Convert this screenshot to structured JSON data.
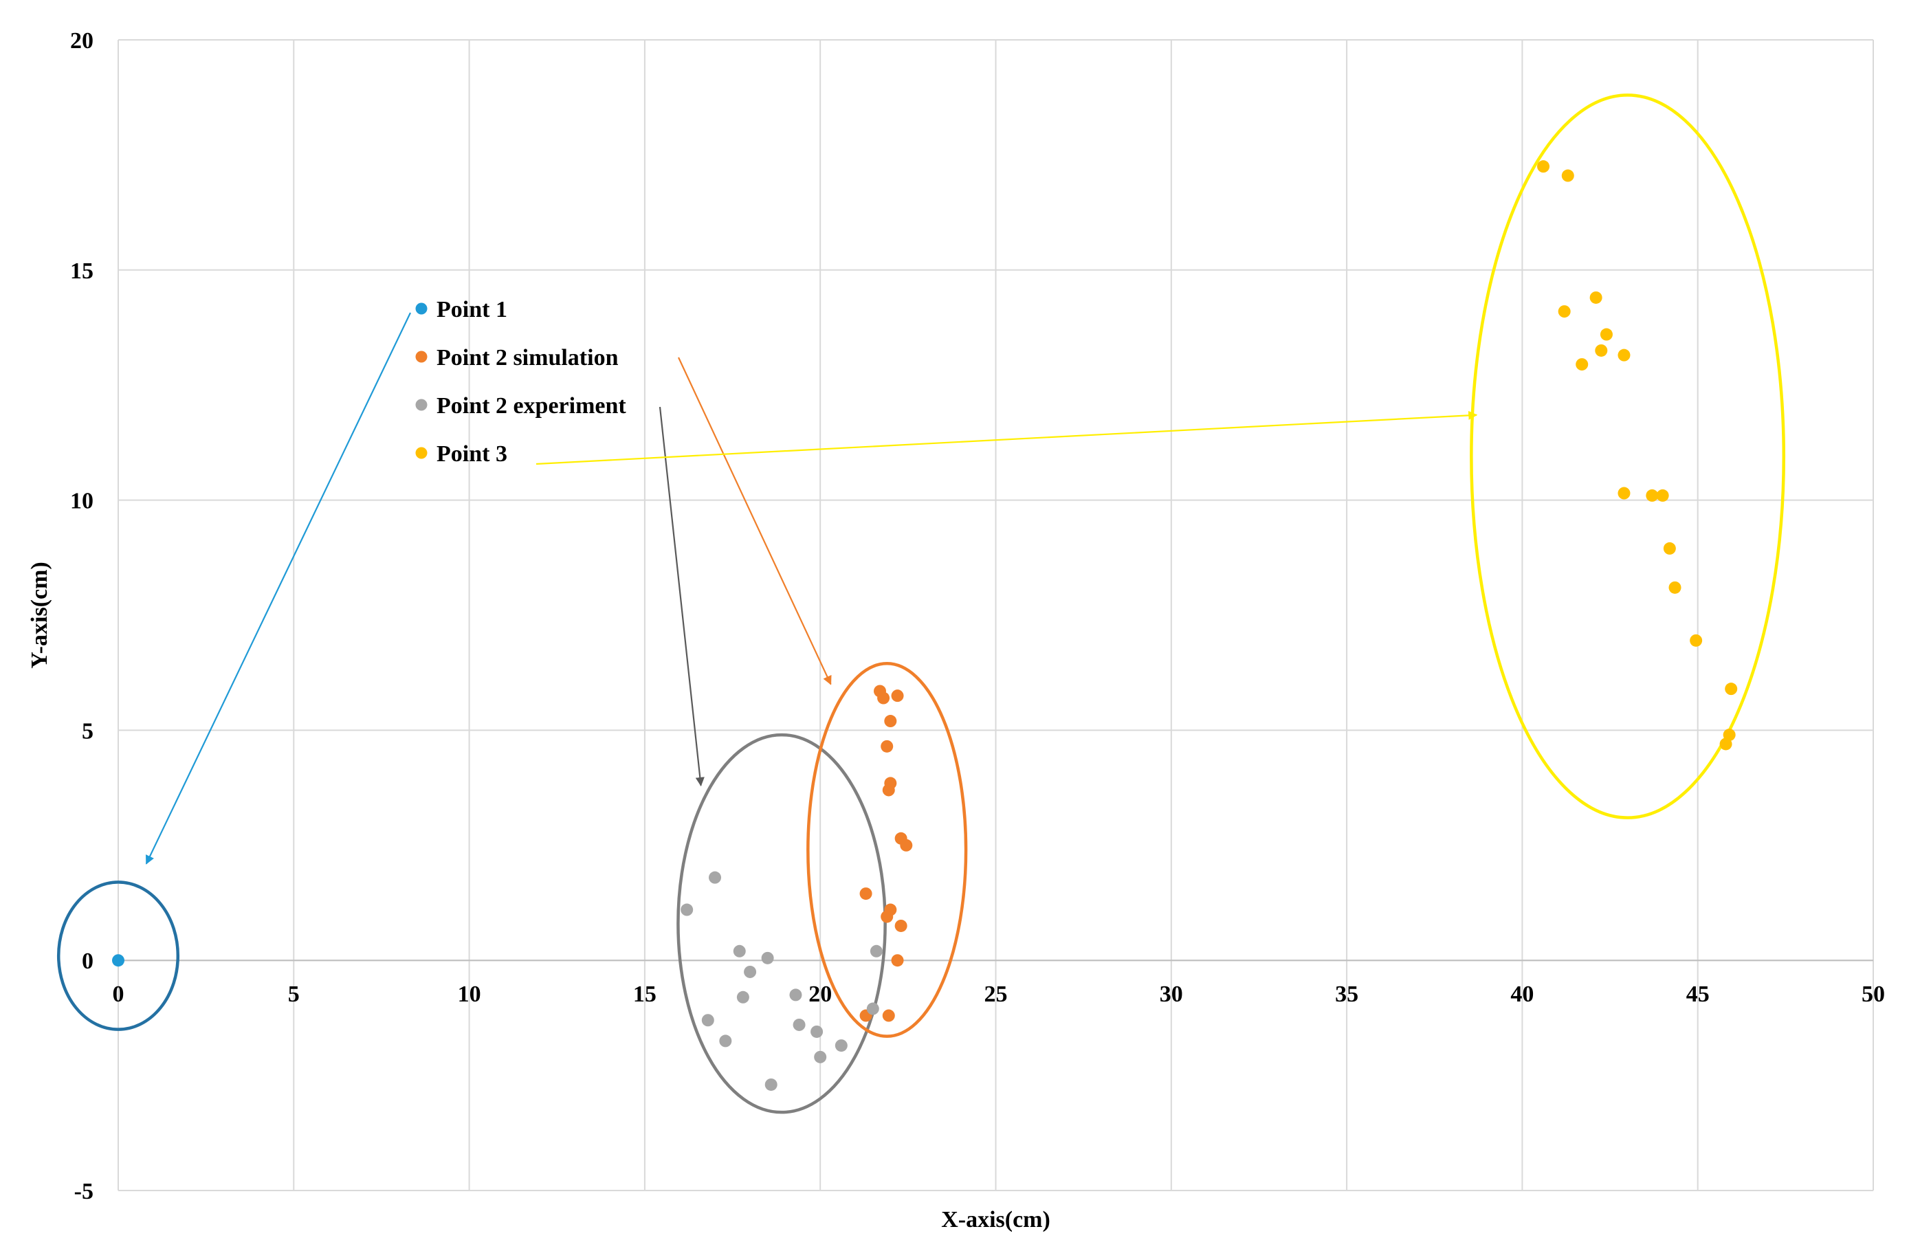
{
  "chart_data": {
    "type": "scatter",
    "xlabel": "X-axis(cm)",
    "ylabel": "Y-axis(cm)",
    "xlim": [
      0,
      50
    ],
    "ylim": [
      -5,
      20
    ],
    "x_ticks": [
      0,
      5,
      10,
      15,
      20,
      25,
      30,
      35,
      40,
      45,
      50
    ],
    "y_ticks": [
      -5,
      0,
      5,
      10,
      15,
      20
    ],
    "grid": true,
    "legend_position": "upper-left",
    "series": [
      {
        "name": "Point 1",
        "color": "#1f9ad6",
        "points": [
          [
            0,
            0
          ]
        ]
      },
      {
        "name": "Point 2 simulation",
        "color": "#f07f2a",
        "points": [
          [
            21.7,
            5.85
          ],
          [
            21.8,
            5.7
          ],
          [
            22.2,
            5.75
          ],
          [
            22.0,
            5.2
          ],
          [
            21.9,
            4.65
          ],
          [
            22.0,
            3.85
          ],
          [
            21.95,
            3.7
          ],
          [
            22.3,
            2.65
          ],
          [
            22.45,
            2.5
          ],
          [
            21.3,
            1.45
          ],
          [
            22.0,
            1.1
          ],
          [
            21.9,
            0.95
          ],
          [
            22.3,
            0.75
          ],
          [
            22.2,
            0.0
          ],
          [
            21.3,
            -1.2
          ],
          [
            21.95,
            -1.2
          ]
        ]
      },
      {
        "name": "Point 2 experiment",
        "color": "#a6a6a6",
        "points": [
          [
            17.0,
            1.8
          ],
          [
            16.2,
            1.1
          ],
          [
            17.7,
            0.2
          ],
          [
            18.5,
            0.05
          ],
          [
            18.0,
            -0.25
          ],
          [
            17.8,
            -0.8
          ],
          [
            19.3,
            -0.75
          ],
          [
            21.6,
            0.2
          ],
          [
            16.8,
            -1.3
          ],
          [
            17.3,
            -1.75
          ],
          [
            19.4,
            -1.4
          ],
          [
            19.9,
            -1.55
          ],
          [
            20.6,
            -1.85
          ],
          [
            20.0,
            -2.1
          ],
          [
            21.5,
            -1.05
          ],
          [
            18.6,
            -2.7
          ]
        ]
      },
      {
        "name": "Point 3",
        "color": "#ffbf00",
        "points": [
          [
            40.6,
            17.25
          ],
          [
            41.3,
            17.05
          ],
          [
            42.1,
            14.4
          ],
          [
            41.2,
            14.1
          ],
          [
            42.4,
            13.6
          ],
          [
            42.25,
            13.25
          ],
          [
            42.9,
            13.15
          ],
          [
            41.7,
            12.95
          ],
          [
            42.9,
            10.15
          ],
          [
            43.7,
            10.1
          ],
          [
            44.0,
            10.1
          ],
          [
            44.2,
            8.95
          ],
          [
            44.35,
            8.1
          ],
          [
            44.95,
            6.95
          ],
          [
            45.95,
            5.9
          ],
          [
            45.9,
            4.9
          ],
          [
            45.8,
            4.7
          ]
        ]
      }
    ],
    "annotations": {
      "ellipses": [
        {
          "series": "Point 1",
          "color": "#2471a3",
          "cx": 0,
          "cy": 0.1,
          "rx": 1.7,
          "ry": 1.6
        },
        {
          "series": "Point 2 experiment",
          "color": "#7f7f7f",
          "cx": 18.9,
          "cy": 0.8,
          "rx": 2.95,
          "ry": 4.1
        },
        {
          "series": "Point 2 simulation",
          "color": "#f07f2a",
          "cx": 21.9,
          "cy": 2.4,
          "rx": 2.25,
          "ry": 4.05
        },
        {
          "series": "Point 3",
          "color": "#ffee00",
          "cx": 43.0,
          "cy": 10.95,
          "rx": 4.45,
          "ry": 7.85
        }
      ],
      "arrows": [
        {
          "series": "Point 1",
          "color": "#1f9ad6",
          "to": [
            0.8,
            2.1
          ]
        },
        {
          "series": "Point 2 simulation",
          "color": "#f07f2a",
          "to": [
            20.3,
            6.0
          ]
        },
        {
          "series": "Point 2 experiment",
          "color": "#595959",
          "to": [
            16.6,
            3.8
          ]
        },
        {
          "series": "Point 3",
          "color": "#ffee00",
          "to": [
            38.7,
            11.85
          ]
        }
      ]
    }
  }
}
